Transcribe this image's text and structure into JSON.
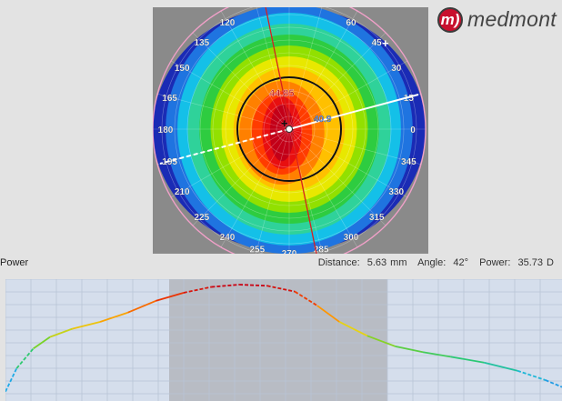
{
  "logo": {
    "mark": "m)",
    "text": "medmont"
  },
  "topography": {
    "angle_labels": [
      "120",
      "135",
      "150",
      "165",
      "180",
      "195",
      "210",
      "225",
      "240",
      "255",
      "270",
      "285",
      "300",
      "315",
      "330",
      "345",
      "0",
      "15",
      "30",
      "45",
      "60"
    ],
    "apex_value": "44.85",
    "cursor_value": "40.9",
    "meridian_deg": 42
  },
  "status": {
    "panel_label": "Power",
    "distance_label": "Distance:",
    "distance_value": "5.63 mm",
    "angle_label": "Angle:",
    "angle_value": "42°",
    "power_label": "Power:",
    "power_value": "35.73 D"
  },
  "colors": {
    "background": "#e3e3e3",
    "plot_bg": "#d5deec",
    "grid": "#b8c4d6",
    "band": "#b8bcc4"
  },
  "profile_curve": {
    "x": [
      0,
      0.02,
      0.05,
      0.08,
      0.12,
      0.17,
      0.22,
      0.27,
      0.32,
      0.37,
      0.42,
      0.47,
      0.52,
      0.56,
      0.6,
      0.65,
      0.7,
      0.75,
      0.8,
      0.86,
      0.92,
      0.97,
      1
    ],
    "level": [
      0.08,
      0.28,
      0.45,
      0.55,
      0.62,
      0.68,
      0.76,
      0.86,
      0.93,
      0.98,
      1.0,
      0.99,
      0.94,
      0.82,
      0.68,
      0.56,
      0.47,
      0.42,
      0.38,
      0.33,
      0.26,
      0.18,
      0.12
    ]
  }
}
